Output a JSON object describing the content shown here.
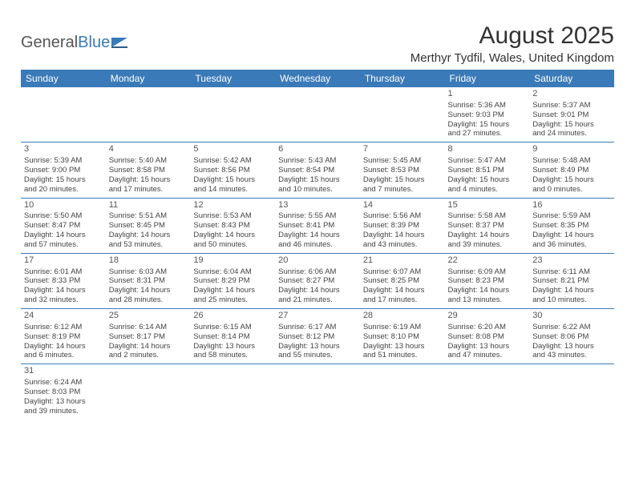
{
  "logo": {
    "word1": "General",
    "word2": "Blue"
  },
  "title": "August 2025",
  "location": "Merthyr Tydfil, Wales, United Kingdom",
  "day_headers": [
    "Sunday",
    "Monday",
    "Tuesday",
    "Wednesday",
    "Thursday",
    "Friday",
    "Saturday"
  ],
  "colors": {
    "accent": "#3a7ab8",
    "text": "#444"
  },
  "weeks": [
    [
      null,
      null,
      null,
      null,
      null,
      {
        "n": "1",
        "sunrise": "5:36 AM",
        "sunset": "9:03 PM",
        "dl1": "Daylight: 15 hours",
        "dl2": "and 27 minutes."
      },
      {
        "n": "2",
        "sunrise": "5:37 AM",
        "sunset": "9:01 PM",
        "dl1": "Daylight: 15 hours",
        "dl2": "and 24 minutes."
      }
    ],
    [
      {
        "n": "3",
        "sunrise": "5:39 AM",
        "sunset": "9:00 PM",
        "dl1": "Daylight: 15 hours",
        "dl2": "and 20 minutes."
      },
      {
        "n": "4",
        "sunrise": "5:40 AM",
        "sunset": "8:58 PM",
        "dl1": "Daylight: 15 hours",
        "dl2": "and 17 minutes."
      },
      {
        "n": "5",
        "sunrise": "5:42 AM",
        "sunset": "8:56 PM",
        "dl1": "Daylight: 15 hours",
        "dl2": "and 14 minutes."
      },
      {
        "n": "6",
        "sunrise": "5:43 AM",
        "sunset": "8:54 PM",
        "dl1": "Daylight: 15 hours",
        "dl2": "and 10 minutes."
      },
      {
        "n": "7",
        "sunrise": "5:45 AM",
        "sunset": "8:53 PM",
        "dl1": "Daylight: 15 hours",
        "dl2": "and 7 minutes."
      },
      {
        "n": "8",
        "sunrise": "5:47 AM",
        "sunset": "8:51 PM",
        "dl1": "Daylight: 15 hours",
        "dl2": "and 4 minutes."
      },
      {
        "n": "9",
        "sunrise": "5:48 AM",
        "sunset": "8:49 PM",
        "dl1": "Daylight: 15 hours",
        "dl2": "and 0 minutes."
      }
    ],
    [
      {
        "n": "10",
        "sunrise": "5:50 AM",
        "sunset": "8:47 PM",
        "dl1": "Daylight: 14 hours",
        "dl2": "and 57 minutes."
      },
      {
        "n": "11",
        "sunrise": "5:51 AM",
        "sunset": "8:45 PM",
        "dl1": "Daylight: 14 hours",
        "dl2": "and 53 minutes."
      },
      {
        "n": "12",
        "sunrise": "5:53 AM",
        "sunset": "8:43 PM",
        "dl1": "Daylight: 14 hours",
        "dl2": "and 50 minutes."
      },
      {
        "n": "13",
        "sunrise": "5:55 AM",
        "sunset": "8:41 PM",
        "dl1": "Daylight: 14 hours",
        "dl2": "and 46 minutes."
      },
      {
        "n": "14",
        "sunrise": "5:56 AM",
        "sunset": "8:39 PM",
        "dl1": "Daylight: 14 hours",
        "dl2": "and 43 minutes."
      },
      {
        "n": "15",
        "sunrise": "5:58 AM",
        "sunset": "8:37 PM",
        "dl1": "Daylight: 14 hours",
        "dl2": "and 39 minutes."
      },
      {
        "n": "16",
        "sunrise": "5:59 AM",
        "sunset": "8:35 PM",
        "dl1": "Daylight: 14 hours",
        "dl2": "and 36 minutes."
      }
    ],
    [
      {
        "n": "17",
        "sunrise": "6:01 AM",
        "sunset": "8:33 PM",
        "dl1": "Daylight: 14 hours",
        "dl2": "and 32 minutes."
      },
      {
        "n": "18",
        "sunrise": "6:03 AM",
        "sunset": "8:31 PM",
        "dl1": "Daylight: 14 hours",
        "dl2": "and 28 minutes."
      },
      {
        "n": "19",
        "sunrise": "6:04 AM",
        "sunset": "8:29 PM",
        "dl1": "Daylight: 14 hours",
        "dl2": "and 25 minutes."
      },
      {
        "n": "20",
        "sunrise": "6:06 AM",
        "sunset": "8:27 PM",
        "dl1": "Daylight: 14 hours",
        "dl2": "and 21 minutes."
      },
      {
        "n": "21",
        "sunrise": "6:07 AM",
        "sunset": "8:25 PM",
        "dl1": "Daylight: 14 hours",
        "dl2": "and 17 minutes."
      },
      {
        "n": "22",
        "sunrise": "6:09 AM",
        "sunset": "8:23 PM",
        "dl1": "Daylight: 14 hours",
        "dl2": "and 13 minutes."
      },
      {
        "n": "23",
        "sunrise": "6:11 AM",
        "sunset": "8:21 PM",
        "dl1": "Daylight: 14 hours",
        "dl2": "and 10 minutes."
      }
    ],
    [
      {
        "n": "24",
        "sunrise": "6:12 AM",
        "sunset": "8:19 PM",
        "dl1": "Daylight: 14 hours",
        "dl2": "and 6 minutes."
      },
      {
        "n": "25",
        "sunrise": "6:14 AM",
        "sunset": "8:17 PM",
        "dl1": "Daylight: 14 hours",
        "dl2": "and 2 minutes."
      },
      {
        "n": "26",
        "sunrise": "6:15 AM",
        "sunset": "8:14 PM",
        "dl1": "Daylight: 13 hours",
        "dl2": "and 58 minutes."
      },
      {
        "n": "27",
        "sunrise": "6:17 AM",
        "sunset": "8:12 PM",
        "dl1": "Daylight: 13 hours",
        "dl2": "and 55 minutes."
      },
      {
        "n": "28",
        "sunrise": "6:19 AM",
        "sunset": "8:10 PM",
        "dl1": "Daylight: 13 hours",
        "dl2": "and 51 minutes."
      },
      {
        "n": "29",
        "sunrise": "6:20 AM",
        "sunset": "8:08 PM",
        "dl1": "Daylight: 13 hours",
        "dl2": "and 47 minutes."
      },
      {
        "n": "30",
        "sunrise": "6:22 AM",
        "sunset": "8:06 PM",
        "dl1": "Daylight: 13 hours",
        "dl2": "and 43 minutes."
      }
    ],
    [
      {
        "n": "31",
        "sunrise": "6:24 AM",
        "sunset": "8:03 PM",
        "dl1": "Daylight: 13 hours",
        "dl2": "and 39 minutes."
      },
      null,
      null,
      null,
      null,
      null,
      null
    ]
  ]
}
